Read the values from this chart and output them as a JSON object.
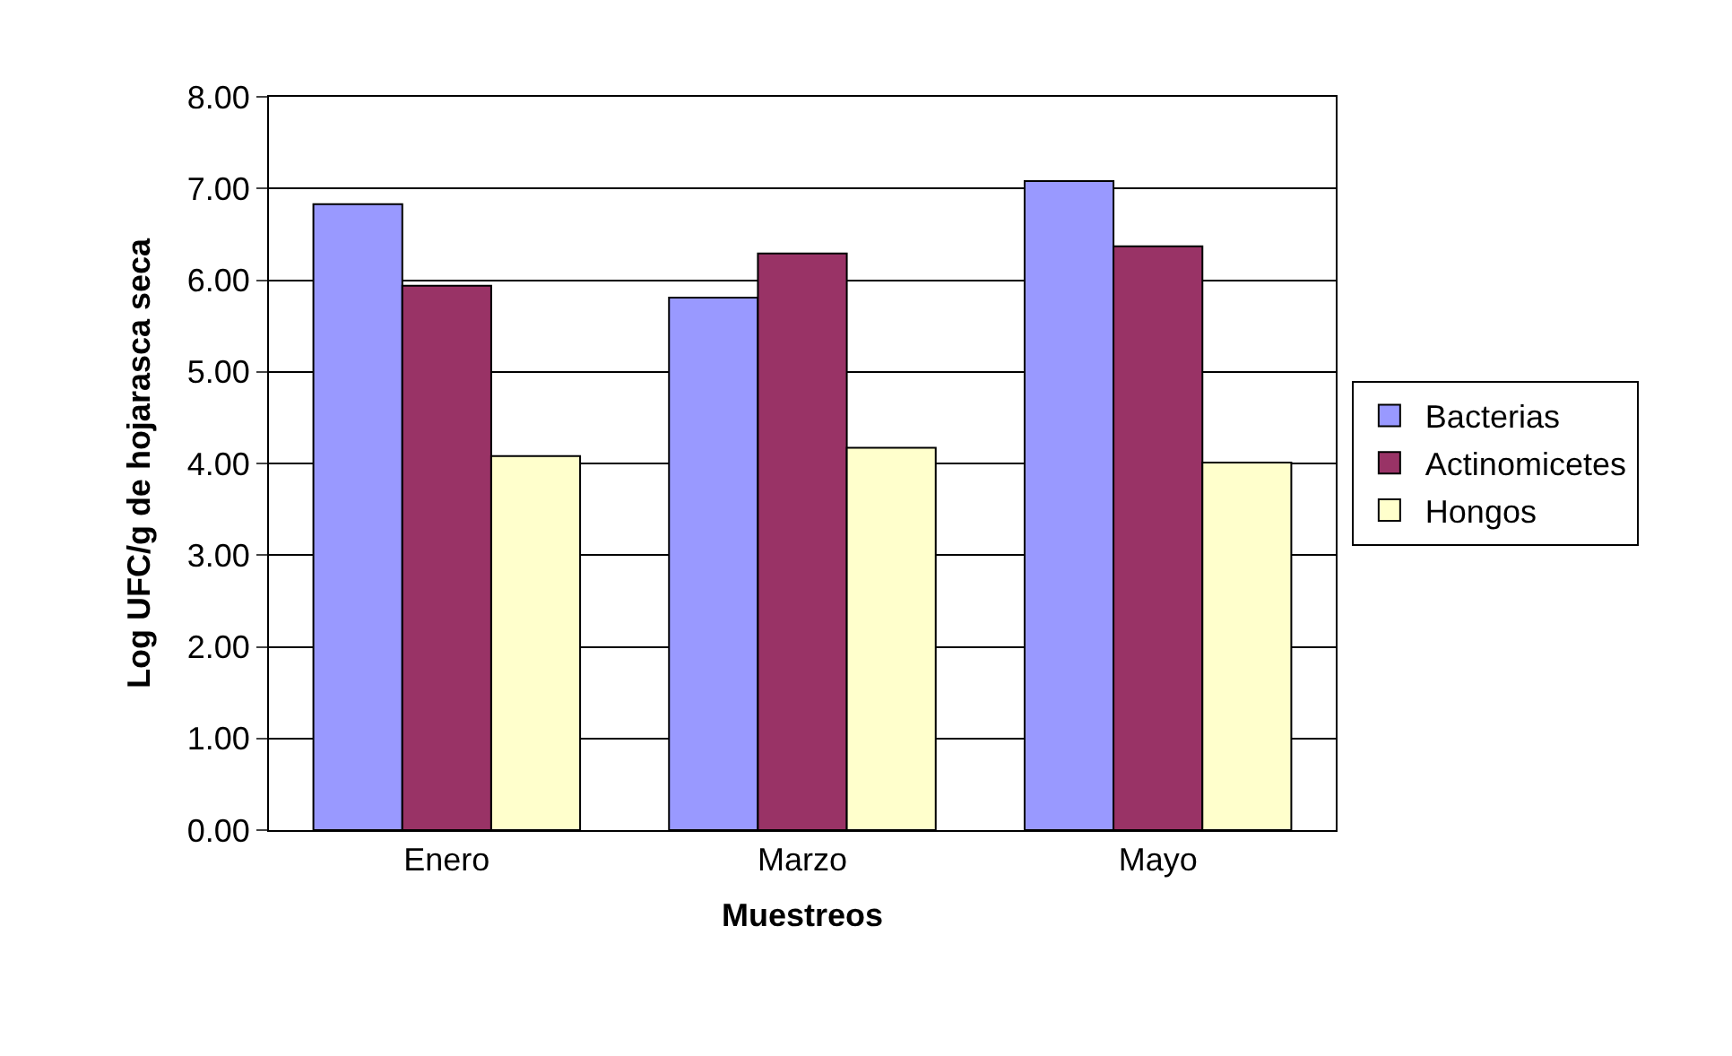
{
  "chart_data": {
    "type": "bar",
    "xlabel": "Muestreos",
    "ylabel": "Log UFC/g de hojarasca seca",
    "categories": [
      "Enero",
      "Marzo",
      "Mayo"
    ],
    "series": [
      {
        "name": "Bacterias",
        "color": "#9999ff",
        "values": [
          6.83,
          5.81,
          7.08
        ]
      },
      {
        "name": "Actinomicetes",
        "color": "#993366",
        "values": [
          5.94,
          6.29,
          6.37
        ]
      },
      {
        "name": "Hongos",
        "color": "#ffffcc",
        "values": [
          4.08,
          4.17,
          4.01
        ]
      }
    ],
    "ylim": [
      0,
      8
    ],
    "yticks": [
      {
        "value": 0,
        "label": "0.00"
      },
      {
        "value": 1,
        "label": "1.00"
      },
      {
        "value": 2,
        "label": "2.00"
      },
      {
        "value": 3,
        "label": "3.00"
      },
      {
        "value": 4,
        "label": "4.00"
      },
      {
        "value": 5,
        "label": "5.00"
      },
      {
        "value": 6,
        "label": "6.00"
      },
      {
        "value": 7,
        "label": "7.00"
      },
      {
        "value": 8,
        "label": "8.00"
      }
    ],
    "grid": "y",
    "legend": "right"
  }
}
